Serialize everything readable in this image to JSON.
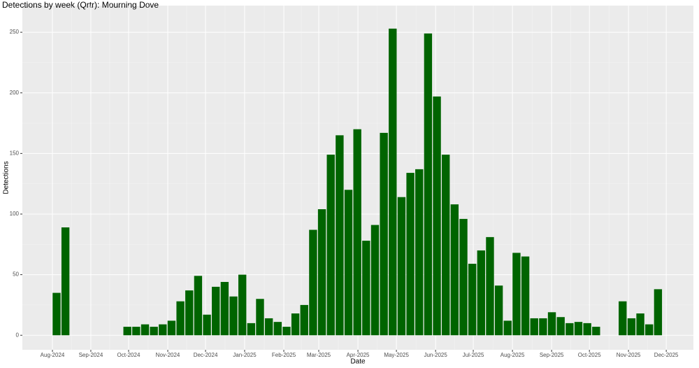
{
  "chart_data": {
    "type": "bar",
    "title": "Detections by week (Qrtr): Mourning Dove",
    "xlabel": "Date",
    "ylabel": "Detections",
    "categories": [
      null,
      null,
      null,
      null,
      null,
      null,
      null,
      null,
      null,
      null,
      null,
      null,
      null,
      null,
      null,
      null,
      null,
      null,
      null,
      null,
      null,
      null,
      null,
      null,
      null,
      null,
      null,
      null,
      null,
      null,
      null,
      null,
      null,
      null,
      null,
      null,
      null,
      null,
      null,
      null,
      null,
      null,
      null,
      null,
      null,
      null,
      null,
      null,
      null,
      null,
      null,
      null,
      null,
      null,
      null,
      null,
      null,
      null,
      null,
      null,
      null,
      null,
      null,
      null,
      null,
      null,
      null,
      null,
      null
    ],
    "values": [
      35,
      89,
      null,
      null,
      null,
      null,
      null,
      null,
      7,
      7,
      9,
      7,
      9,
      12,
      28,
      37,
      49,
      17,
      40,
      44,
      32,
      50,
      10,
      30,
      14,
      11,
      7,
      18,
      25,
      87,
      104,
      149,
      165,
      120,
      170,
      78,
      91,
      167,
      253,
      114,
      134,
      137,
      249,
      197,
      149,
      108,
      96,
      59,
      70,
      81,
      41,
      12,
      68,
      65,
      14,
      14,
      19,
      15,
      10,
      11,
      10,
      7,
      null,
      null,
      28,
      14,
      18,
      9,
      38
    ],
    "color": "#006400",
    "xlim": [
      -3.87,
      72.0
    ],
    "xticks": [
      {
        "value": -0.47,
        "label": "Aug-2024"
      },
      {
        "value": 3.87,
        "label": "Sep-2024"
      },
      {
        "value": 8.14,
        "label": "Oct-2024"
      },
      {
        "value": 12.57,
        "label": "Nov-2024"
      },
      {
        "value": 16.84,
        "label": "Dec-2024"
      },
      {
        "value": 21.26,
        "label": "Jan-2025"
      },
      {
        "value": 25.69,
        "label": "Feb-2025"
      },
      {
        "value": 29.64,
        "label": "Mar-2025"
      },
      {
        "value": 34.07,
        "label": "Apr-2025"
      },
      {
        "value": 38.42,
        "label": "May-2025"
      },
      {
        "value": 42.85,
        "label": "Jun-2025"
      },
      {
        "value": 47.11,
        "label": "Jul-2025"
      },
      {
        "value": 51.54,
        "label": "Aug-2025"
      },
      {
        "value": 55.97,
        "label": "Sep-2025"
      },
      {
        "value": 60.24,
        "label": "Oct-2025"
      },
      {
        "value": 64.66,
        "label": "Nov-2025"
      },
      {
        "value": 68.93,
        "label": "Dec-2025"
      }
    ],
    "ylim": [
      -12,
      272
    ],
    "yticks": [
      0,
      50,
      100,
      150,
      200,
      250
    ],
    "grid": true
  }
}
